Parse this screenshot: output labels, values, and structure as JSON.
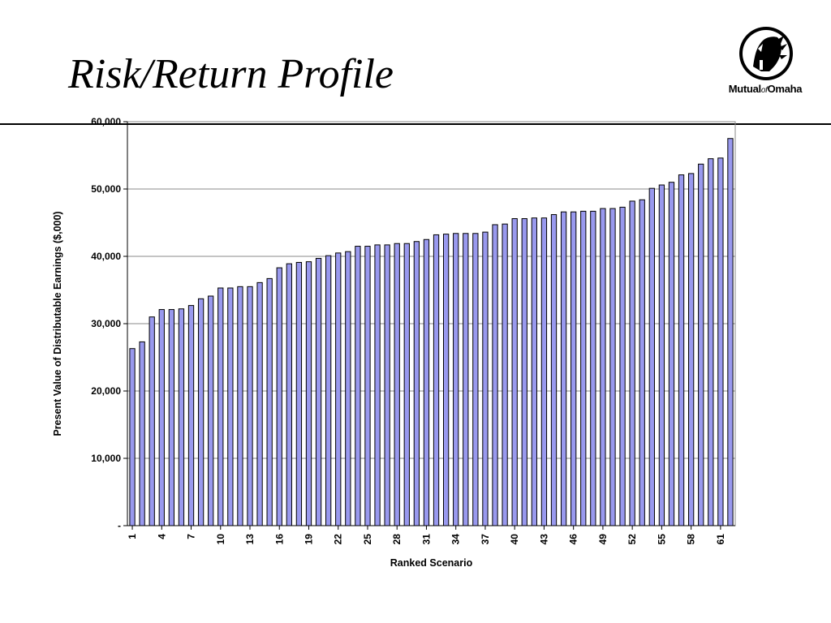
{
  "slide": {
    "title": "Risk/Return Profile"
  },
  "logo": {
    "name": "Mutual of Omaha",
    "text_main": "Mutual",
    "text_of": "of",
    "text_end": "Omaha",
    "registered": "®"
  },
  "colors": {
    "bar_fill": "#9999ee",
    "bar_stroke": "#000000",
    "grid": "#888888",
    "rule": "#000000"
  },
  "chart_data": {
    "type": "bar",
    "title": "",
    "xlabel": "Ranked Scenario",
    "ylabel": "Present Value of Distributable Earnings ($,000)",
    "ylim": [
      0,
      60000
    ],
    "yticks": [
      0,
      10000,
      20000,
      30000,
      40000,
      50000,
      60000
    ],
    "ytick_labels": [
      "-",
      "10,000",
      "20,000",
      "30,000",
      "40,000",
      "50,000",
      "60,000"
    ],
    "grid": true,
    "x": [
      1,
      2,
      3,
      4,
      5,
      6,
      7,
      8,
      9,
      10,
      11,
      12,
      13,
      14,
      15,
      16,
      17,
      18,
      19,
      20,
      21,
      22,
      23,
      24,
      25,
      26,
      27,
      28,
      29,
      30,
      31,
      32,
      33,
      34,
      35,
      36,
      37,
      38,
      39,
      40,
      41,
      42,
      43,
      44,
      45,
      46,
      47,
      48,
      49,
      50,
      51,
      52,
      53,
      54,
      55,
      56,
      57,
      58,
      59,
      60,
      61,
      62
    ],
    "xtick_labels": [
      1,
      4,
      7,
      10,
      13,
      16,
      19,
      22,
      25,
      28,
      31,
      34,
      37,
      40,
      43,
      46,
      49,
      52,
      55,
      58,
      61
    ],
    "values": [
      26300,
      27300,
      31000,
      32100,
      32100,
      32200,
      32700,
      33700,
      34100,
      35300,
      35300,
      35500,
      35500,
      36100,
      36700,
      38300,
      38900,
      39100,
      39200,
      39700,
      40100,
      40500,
      40700,
      41500,
      41500,
      41700,
      41700,
      41900,
      41900,
      42200,
      42500,
      43200,
      43300,
      43400,
      43400,
      43400,
      43600,
      44700,
      44800,
      45600,
      45600,
      45700,
      45700,
      46200,
      46600,
      46600,
      46700,
      46700,
      47100,
      47100,
      47300,
      48200,
      48400,
      50100,
      50600,
      51000,
      52100,
      52300,
      53700,
      54500,
      54600,
      57500
    ]
  }
}
